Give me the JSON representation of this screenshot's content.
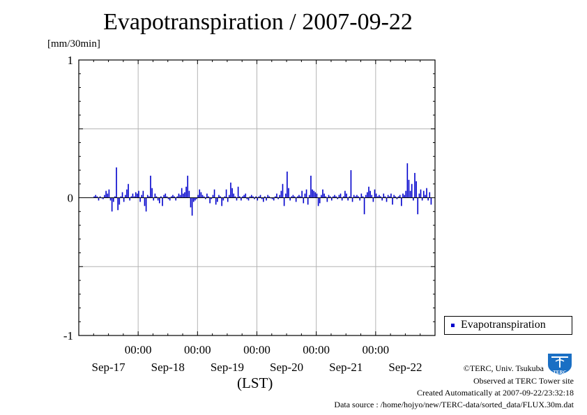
{
  "title": "Evapotranspiration / 2007-09-22",
  "unit_label": "[mm/30min]",
  "x_axis_label": "(LST)",
  "legend": {
    "label": "Evapotranspiration",
    "color": "#0000cc"
  },
  "footer": {
    "copyright": "©TERC, Univ. Tsukuba",
    "observed": "Observed at TERC Tower site",
    "created": "Created Automatically at 2007-09-22/23:32:18",
    "source": "Data source : /home/hojyo/new/TERC-data/sorted_data/FLUX.30m.dat"
  },
  "logo": {
    "text": "TERC",
    "color": "#1a6fc4"
  },
  "chart_data": {
    "type": "bar",
    "title": "Evapotranspiration / 2007-09-22",
    "ylabel": "[mm/30min]",
    "xlabel": "(LST)",
    "ylim": [
      -1,
      1
    ],
    "yticks": [
      -1,
      0,
      1
    ],
    "grid": true,
    "legend_position": "right",
    "x_range_days": [
      0,
      6
    ],
    "time_labels": [
      "00:00",
      "00:00",
      "00:00",
      "00:00",
      "00:00"
    ],
    "date_labels": [
      "Sep-17",
      "Sep-18",
      "Sep-19",
      "Sep-20",
      "Sep-21",
      "Sep-22"
    ],
    "series": [
      {
        "name": "Evapotranspiration",
        "color": "#0000cc",
        "interval_hours": 0.5,
        "values": [
          0.01,
          0.02,
          0.01,
          -0.02,
          0.01,
          0.0,
          -0.01,
          0.02,
          0.05,
          0.03,
          0.06,
          -0.02,
          -0.1,
          -0.03,
          0.01,
          0.22,
          -0.09,
          -0.05,
          0.01,
          0.04,
          -0.03,
          0.02,
          0.06,
          0.1,
          -0.02,
          0.01,
          0.03,
          0.01,
          0.04,
          0.03,
          0.05,
          -0.03,
          0.02,
          0.05,
          -0.06,
          -0.1,
          0.02,
          0.01,
          0.16,
          0.07,
          -0.02,
          0.03,
          0.01,
          -0.02,
          -0.04,
          0.01,
          -0.06,
          0.02,
          0.03,
          0.01,
          -0.01,
          -0.02,
          0.01,
          0.02,
          0.01,
          -0.02,
          0.01,
          0.03,
          0.02,
          0.07,
          0.03,
          0.04,
          0.08,
          0.16,
          0.05,
          -0.07,
          -0.13,
          -0.03,
          -0.02,
          -0.01,
          0.02,
          0.06,
          0.04,
          0.02,
          0.01,
          -0.01,
          0.03,
          0.01,
          -0.04,
          -0.01,
          0.02,
          0.06,
          -0.05,
          -0.03,
          0.02,
          0.01,
          -0.06,
          -0.02,
          0.01,
          0.06,
          -0.03,
          0.02,
          0.11,
          0.07,
          0.03,
          0.01,
          -0.02,
          0.08,
          0.01,
          -0.02,
          0.01,
          0.02,
          0.03,
          -0.01,
          -0.02,
          0.01,
          0.02,
          0.01,
          -0.01,
          0.01,
          -0.02,
          0.01,
          0.02,
          -0.01,
          -0.03,
          0.01,
          -0.02,
          0.02,
          0.01,
          0.0,
          -0.01,
          -0.02,
          0.01,
          0.03,
          -0.01,
          0.02,
          0.05,
          0.1,
          -0.06,
          0.03,
          0.19,
          0.07,
          -0.02,
          0.01,
          0.02,
          0.01,
          -0.03,
          0.01,
          0.02,
          0.01,
          0.05,
          -0.04,
          0.03,
          0.06,
          -0.05,
          0.02,
          0.16,
          0.06,
          0.05,
          0.04,
          0.03,
          -0.06,
          -0.04,
          0.02,
          0.06,
          0.03,
          0.01,
          -0.03,
          0.02,
          0.01,
          -0.02,
          0.01,
          0.02,
          0.01,
          -0.01,
          0.02,
          0.03,
          -0.02,
          0.01,
          0.05,
          0.03,
          -0.02,
          0.01,
          0.2,
          -0.03,
          0.02,
          0.01,
          0.02,
          0.01,
          -0.02,
          0.03,
          0.01,
          -0.12,
          0.02,
          0.04,
          0.08,
          0.05,
          0.02,
          -0.03,
          0.06,
          0.03,
          0.01,
          0.02,
          0.01,
          -0.02,
          0.03,
          0.01,
          -0.03,
          0.02,
          0.01,
          0.03,
          -0.05,
          0.02,
          0.01,
          -0.01,
          0.01,
          0.02,
          -0.06,
          0.03,
          0.02,
          0.05,
          0.25,
          0.13,
          0.05,
          0.1,
          -0.02,
          0.18,
          0.12,
          -0.12,
          0.03,
          0.06,
          -0.02,
          0.05,
          0.02,
          0.07,
          -0.02,
          0.04,
          -0.05
        ]
      }
    ]
  }
}
